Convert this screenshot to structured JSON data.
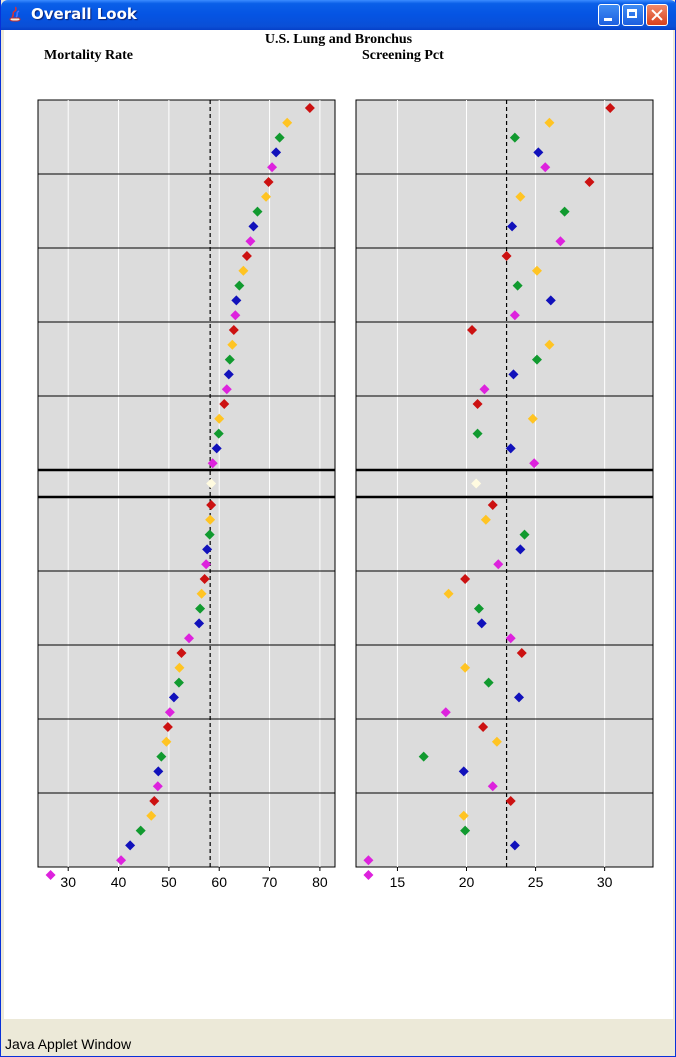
{
  "window": {
    "title": "Overall Look"
  },
  "status_bar": {
    "text": "Java Applet Window"
  },
  "colors": {
    "red": "#cc1111",
    "orange": "#ffc423",
    "green": "#119a2f",
    "blue": "#1111bb",
    "magenta": "#dd22dd",
    "white": "#fffbe0"
  },
  "chart_data": {
    "type": "scatter",
    "title": "U.S. Lung and Bronchus",
    "panels": [
      {
        "name": "Mortality Rate",
        "xlim": [
          24,
          83
        ],
        "xticks": [
          30,
          40,
          50,
          60,
          70,
          80
        ],
        "gridlines": [
          30,
          40,
          50,
          60,
          70,
          80
        ],
        "reference": 58.2,
        "values": [
          78,
          73.5,
          72,
          71.3,
          70.5,
          69.8,
          69.3,
          67.6,
          66.8,
          66.2,
          65.5,
          64.8,
          64,
          63.4,
          63.2,
          62.9,
          62.6,
          62.1,
          61.9,
          61.5,
          61,
          60,
          59.9,
          59.5,
          58.7,
          58.4,
          58.4,
          58.2,
          58.1,
          57.6,
          57.4,
          57.1,
          56.5,
          56.2,
          56,
          54,
          52.5,
          52.1,
          52,
          51,
          50.2,
          49.8,
          49.5,
          48.5,
          47.9,
          47.8,
          47.1,
          46.5,
          44.4,
          42.3,
          40.5,
          26.5
        ],
        "colors": [
          "red",
          "orange",
          "green",
          "blue",
          "magenta",
          "red",
          "orange",
          "green",
          "blue",
          "magenta",
          "red",
          "orange",
          "green",
          "blue",
          "magenta",
          "red",
          "orange",
          "green",
          "blue",
          "magenta",
          "red",
          "orange",
          "green",
          "blue",
          "magenta",
          "white",
          "red",
          "orange",
          "green",
          "blue",
          "magenta",
          "red",
          "orange",
          "green",
          "blue",
          "magenta",
          "red",
          "orange",
          "green",
          "blue",
          "magenta",
          "red",
          "orange",
          "green",
          "blue",
          "magenta",
          "red",
          "orange",
          "green",
          "blue",
          "magenta",
          "magenta"
        ]
      },
      {
        "name": "Screening Pct",
        "xlim": [
          12,
          33.5
        ],
        "xticks": [
          15,
          20,
          25,
          30
        ],
        "gridlines": [
          15,
          20,
          25,
          30
        ],
        "reference": 22.9,
        "values": [
          30.4,
          26,
          23.5,
          25.2,
          25.7,
          28.9,
          23.9,
          27.1,
          23.3,
          26.8,
          22.9,
          25.1,
          23.7,
          26.1,
          23.5,
          20.4,
          26,
          25.1,
          23.4,
          21.3,
          20.8,
          24.8,
          20.8,
          23.2,
          24.9,
          20.7,
          21.9,
          21.4,
          24.2,
          23.9,
          22.3,
          19.9,
          18.7,
          20.9,
          21.1,
          23.2,
          24,
          19.9,
          21.6,
          23.8,
          18.5,
          21.2,
          22.2,
          16.9,
          19.8,
          21.9,
          23.2,
          19.8,
          19.9,
          23.5,
          12.9,
          12.9
        ],
        "colors": [
          "red",
          "orange",
          "green",
          "blue",
          "magenta",
          "red",
          "orange",
          "green",
          "blue",
          "magenta",
          "red",
          "orange",
          "green",
          "blue",
          "magenta",
          "red",
          "orange",
          "green",
          "blue",
          "magenta",
          "red",
          "orange",
          "green",
          "blue",
          "magenta",
          "white",
          "red",
          "orange",
          "green",
          "blue",
          "magenta",
          "red",
          "orange",
          "green",
          "blue",
          "magenta",
          "red",
          "orange",
          "green",
          "blue",
          "magenta",
          "red",
          "orange",
          "green",
          "blue",
          "magenta",
          "red",
          "orange",
          "green",
          "blue",
          "magenta",
          "magenta"
        ]
      }
    ],
    "groups": [
      5,
      5,
      5,
      5,
      5,
      1,
      5,
      5,
      5,
      5,
      6
    ],
    "highlight_group": 5
  }
}
